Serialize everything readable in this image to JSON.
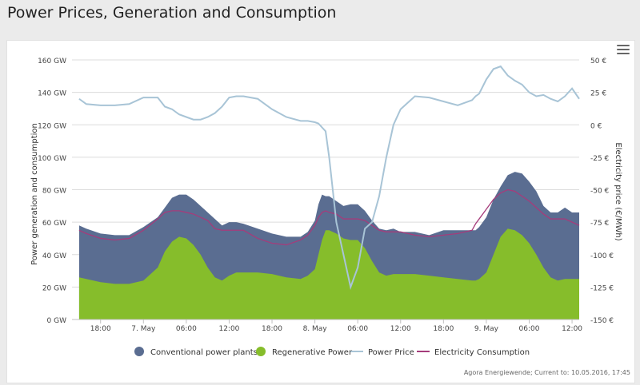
{
  "title": "Power Prices, Generation and Consumption",
  "credits": "Agora Energiewende; Current to: 10.05.2016, 17:45",
  "menu_icon": "hamburger-menu-icon",
  "colors": {
    "conventional": "#5a6d91",
    "regenerative": "#86bd2b",
    "price": "#a8c4d6",
    "consumption": "#a53c7b",
    "grid": "#dcdcdc"
  },
  "chart_data": {
    "type": "area",
    "x_unit": "hours since 6. May 00:00",
    "xlim": [
      14,
      85
    ],
    "x_ticks": [
      {
        "x": 18,
        "label": "18:00"
      },
      {
        "x": 24,
        "label": "7. May"
      },
      {
        "x": 30,
        "label": "06:00"
      },
      {
        "x": 36,
        "label": "12:00"
      },
      {
        "x": 42,
        "label": "18:00"
      },
      {
        "x": 48,
        "label": "8. May"
      },
      {
        "x": 54,
        "label": "06:00"
      },
      {
        "x": 60,
        "label": "12:00"
      },
      {
        "x": 66,
        "label": "18:00"
      },
      {
        "x": 72,
        "label": "9. May"
      },
      {
        "x": 78,
        "label": "06:00"
      },
      {
        "x": 84,
        "label": "12:00"
      }
    ],
    "y_left": {
      "label": "Power generation and consumption",
      "ylim": [
        0,
        160
      ],
      "ticks": [
        0,
        20,
        40,
        60,
        80,
        100,
        120,
        140,
        160
      ],
      "tick_labels": [
        "0 GW",
        "20 GW",
        "40 GW",
        "60 GW",
        "80 GW",
        "100 GW",
        "120 GW",
        "140 GW",
        "160 GW"
      ]
    },
    "y_right": {
      "label": "Electricity price (€/MWh)",
      "ylim": [
        -150,
        50
      ],
      "ticks": [
        -150,
        -125,
        -100,
        -75,
        -50,
        -25,
        0,
        25,
        50
      ],
      "tick_labels": [
        "-150 €",
        "-125 €",
        "-100 €",
        "-75 €",
        "-50 €",
        "-25 €",
        "0 €",
        "25 €",
        "50 €"
      ]
    },
    "legend": [
      "Conventional power plants",
      "Regenerative Power",
      "Power Price",
      "Electricity Consumption"
    ],
    "series": [
      {
        "name": "Regenerative Power",
        "x": [
          15,
          16,
          18,
          20,
          22,
          24,
          26,
          27,
          28,
          29,
          30,
          31,
          32,
          33,
          34,
          35,
          36,
          37,
          38,
          40,
          42,
          44,
          46,
          47,
          48,
          48.5,
          49,
          49.5,
          50,
          51,
          52,
          53,
          54,
          55,
          56,
          57,
          58,
          59,
          60,
          62,
          64,
          66,
          68,
          70,
          70.5,
          71,
          72,
          73,
          74,
          75,
          76,
          77,
          78,
          79,
          80,
          81,
          82,
          83,
          84,
          85
        ],
        "values": [
          26,
          25,
          23,
          22,
          22,
          24,
          32,
          42,
          48,
          51,
          50,
          46,
          40,
          32,
          26,
          24,
          27,
          29,
          29,
          29,
          28,
          26,
          25,
          27,
          31,
          40,
          49,
          55,
          55,
          53,
          50,
          49,
          49,
          44,
          36,
          29,
          27,
          28,
          28,
          28,
          27,
          26,
          25,
          24,
          24,
          25,
          29,
          40,
          51,
          56,
          55,
          52,
          47,
          40,
          32,
          26,
          24,
          25,
          25,
          25
        ]
      },
      {
        "name": "Conventional power plants",
        "x": [
          15,
          16,
          18,
          20,
          22,
          24,
          26,
          27,
          28,
          29,
          30,
          31,
          32,
          33,
          34,
          35,
          36,
          37,
          38,
          40,
          42,
          44,
          46,
          47,
          48,
          48.5,
          49,
          49.5,
          50,
          51,
          52,
          53,
          54,
          55,
          56,
          57,
          58,
          59,
          60,
          62,
          64,
          66,
          68,
          70,
          70.5,
          71,
          72,
          73,
          74,
          75,
          76,
          77,
          78,
          79,
          80,
          81,
          82,
          83,
          84,
          85
        ],
        "values": [
          32,
          31,
          30,
          30,
          30,
          33,
          31,
          27,
          27,
          26,
          27,
          28,
          30,
          34,
          36,
          34,
          33,
          31,
          30,
          27,
          25,
          25,
          26,
          27,
          30,
          31,
          28,
          21,
          21,
          20,
          20,
          22,
          22,
          23,
          25,
          27,
          28,
          28,
          26,
          26,
          25,
          29,
          30,
          31,
          31,
          32,
          34,
          34,
          31,
          33,
          36,
          38,
          38,
          39,
          38,
          40,
          42,
          44,
          41,
          41
        ]
      },
      {
        "name": "Electricity Consumption",
        "x": [
          15,
          16,
          18,
          20,
          22,
          24,
          26,
          27,
          28,
          29,
          30,
          31,
          32,
          33,
          34,
          35,
          36,
          37,
          38,
          40,
          42,
          44,
          46,
          47,
          48,
          48.5,
          49,
          49.5,
          50,
          51,
          52,
          53,
          54,
          55,
          56,
          57,
          58,
          59,
          60,
          62,
          64,
          66,
          68,
          70,
          70.5,
          71,
          72,
          73,
          74,
          75,
          76,
          77,
          78,
          79,
          80,
          81,
          82,
          83,
          84,
          85
        ],
        "values": [
          55,
          53,
          50,
          49,
          50,
          55,
          62,
          66,
          67,
          67,
          66,
          65,
          63,
          61,
          56,
          55,
          55,
          55,
          55,
          50,
          47,
          46,
          49,
          52,
          58,
          63,
          66,
          67,
          66,
          65,
          62,
          62,
          62,
          61,
          58,
          55,
          54,
          54,
          54,
          52,
          51,
          52,
          53,
          55,
          59,
          62,
          68,
          74,
          78,
          80,
          79,
          76,
          73,
          69,
          65,
          62,
          62,
          62,
          60,
          58
        ]
      },
      {
        "name": "Power Price",
        "x": [
          15,
          16,
          18,
          20,
          22,
          24,
          26,
          27,
          28,
          29,
          30,
          31,
          32,
          33,
          34,
          35,
          36,
          37,
          38,
          40,
          42,
          44,
          46,
          47,
          48,
          48.5,
          49,
          49.5,
          50,
          51,
          52,
          53,
          54,
          55,
          56,
          57,
          58,
          59,
          60,
          62,
          64,
          66,
          68,
          70,
          70.5,
          71,
          72,
          73,
          74,
          75,
          76,
          77,
          78,
          79,
          80,
          81,
          82,
          83,
          84,
          85
        ],
        "values": [
          20,
          16,
          15,
          15,
          16,
          21,
          21,
          14,
          12,
          8,
          6,
          4,
          4,
          6,
          9,
          14,
          21,
          22,
          22,
          20,
          12,
          6,
          3,
          3,
          2,
          1,
          -2,
          -5,
          -25,
          -75,
          -100,
          -125,
          -110,
          -80,
          -75,
          -55,
          -25,
          0,
          12,
          22,
          21,
          18,
          15,
          19,
          22,
          24,
          35,
          43,
          45,
          38,
          34,
          31,
          25,
          22,
          23,
          20,
          18,
          22,
          28,
          20
        ]
      }
    ]
  }
}
